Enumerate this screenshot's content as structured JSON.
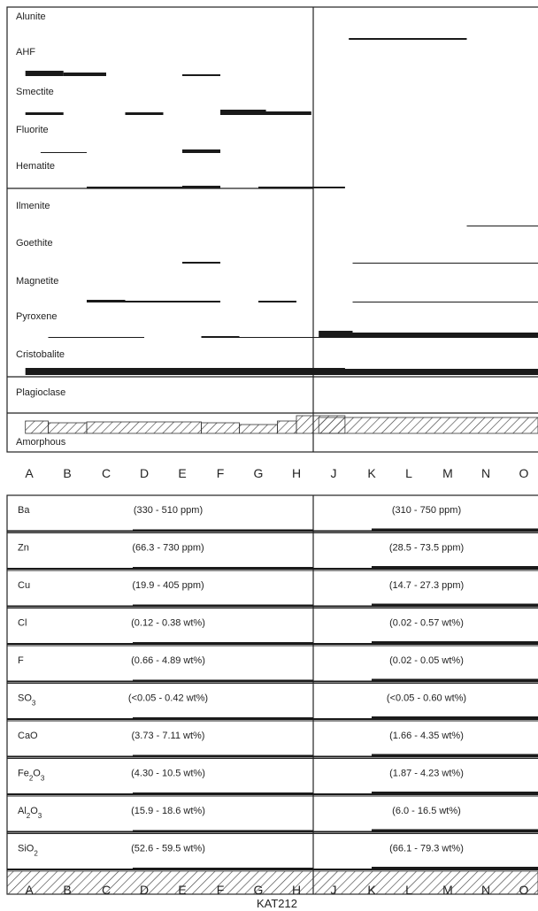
{
  "chart_data": [
    {
      "type": "bar",
      "panel": "mineralogy",
      "samples": [
        "A",
        "B",
        "C",
        "D",
        "E",
        "F",
        "G",
        "H",
        "J",
        "K",
        "L",
        "M",
        "N",
        "O"
      ],
      "minerals": [
        {
          "name": "Alunite",
          "segments": [
            [
              8.4,
              11.5,
              2
            ]
          ]
        },
        {
          "name": "AHF",
          "segments": [
            [
              -0.1,
              0.9,
              6
            ],
            [
              0.9,
              2,
              4
            ],
            [
              4,
              5,
              2
            ]
          ]
        },
        {
          "name": "Smectite",
          "segments": [
            [
              -0.1,
              0.9,
              3
            ],
            [
              2.5,
              3.5,
              3
            ],
            [
              5,
              6.2,
              6
            ],
            [
              6,
              7.4,
              4
            ]
          ]
        },
        {
          "name": "Fluorite",
          "segments": [
            [
              0.3,
              1.5,
              1
            ],
            [
              4,
              5,
              4
            ]
          ]
        },
        {
          "name": "Hematite",
          "segments": [
            [
              1.5,
              4,
              2
            ],
            [
              4,
              5,
              3
            ],
            [
              6,
              8.3,
              2
            ]
          ]
        },
        {
          "name": "Ilmenite",
          "segments": []
        },
        {
          "name": "Goethite",
          "segments": [
            [
              11.5,
              14,
              1
            ]
          ]
        },
        {
          "name": "Magnetite",
          "segments": [
            [
              8.5,
              14,
              1
            ],
            [
              4,
              5,
              2
            ]
          ]
        },
        {
          "name": "Pyroxene",
          "segments": [
            [
              1.5,
              2.5,
              3
            ],
            [
              2.5,
              5,
              2
            ],
            [
              6,
              7,
              2
            ],
            [
              8.5,
              14,
              1
            ]
          ]
        },
        {
          "name": "Cristobalite",
          "segments": [
            [
              0.5,
              3,
              1
            ],
            [
              4.5,
              5.5,
              2
            ],
            [
              5.5,
              8.3,
              1
            ],
            [
              7.6,
              8.5,
              8
            ],
            [
              8.5,
              14,
              6
            ]
          ]
        },
        {
          "name": "Plagioclase",
          "segments": [
            [
              -0.1,
              8.3,
              8
            ],
            [
              7.6,
              14,
              7
            ]
          ]
        },
        {
          "name": "Amorphous",
          "segments": [
            [
              -0.1,
              0.5,
              14
            ],
            [
              0.5,
              1.5,
              12
            ],
            [
              1.5,
              4.5,
              13
            ],
            [
              4.5,
              5.5,
              12
            ],
            [
              5.5,
              6.5,
              10
            ],
            [
              6.5,
              7,
              14
            ],
            [
              7,
              8.3,
              20
            ],
            [
              7.6,
              14,
              18
            ]
          ]
        }
      ]
    },
    {
      "type": "table",
      "panel": "chemistry",
      "samples": [
        "A",
        "B",
        "C",
        "D",
        "E",
        "F",
        "G",
        "H",
        "J",
        "K",
        "L",
        "M",
        "N",
        "O"
      ],
      "xlabel": "KAT212",
      "rows": [
        {
          "label": "Ba",
          "range_left": "(330 - 510 ppm)",
          "range_right": "(310 - 750 ppm)"
        },
        {
          "label": "Zn",
          "range_left": "(66.3 - 730 ppm)",
          "range_right": "(28.5 - 73.5 ppm)"
        },
        {
          "label": "Cu",
          "range_left": "(19.9 - 405 ppm)",
          "range_right": "(14.7 - 27.3 ppm)"
        },
        {
          "label": "Cl",
          "range_left": "(0.12 - 0.38 wt%)",
          "range_right": "(0.02 - 0.57 wt%)"
        },
        {
          "label": "F",
          "range_left": "(0.66 - 4.89 wt%)",
          "range_right": "(0.02 - 0.05 wt%)"
        },
        {
          "label": "SO3",
          "range_left": "(<0.05 - 0.42 wt%)",
          "range_right": "(<0.05 - 0.60 wt%)"
        },
        {
          "label": "CaO",
          "range_left": "(3.73 - 7.11 wt%)",
          "range_right": "(1.66 - 4.35 wt%)"
        },
        {
          "label": "Fe2O3",
          "range_left": "(4.30 - 10.5 wt%)",
          "range_right": "(1.87 - 4.23 wt%)"
        },
        {
          "label": "Al2O3",
          "range_left": "(15.9 - 18.6 wt%)",
          "range_right": "(6.0 - 16.5 wt%)"
        },
        {
          "label": "SiO2",
          "range_left": "(52.6 - 59.5 wt%)",
          "range_right": "(66.1 - 79.3 wt%)"
        }
      ]
    }
  ]
}
